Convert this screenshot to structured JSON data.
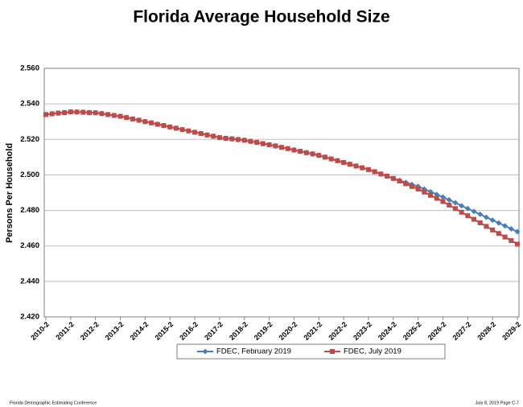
{
  "chart_data": {
    "type": "line",
    "title": "Florida Average Household Size",
    "y_label": "Persons Per Household",
    "footer_left": "Florida Demographic Estimating Conference",
    "footer_right": "July 8, 2019  Page C-7",
    "categories": [
      "2010-2",
      null,
      null,
      null,
      "2011-2",
      null,
      null,
      null,
      "2012-2",
      null,
      null,
      null,
      "2013-2",
      null,
      null,
      null,
      "2014-2",
      null,
      null,
      null,
      "2015-2",
      null,
      null,
      null,
      "2016-2",
      null,
      null,
      null,
      "2017-2",
      null,
      null,
      null,
      "2018-2",
      null,
      null,
      null,
      "2019-2",
      null,
      null,
      null,
      "2020-2",
      null,
      null,
      null,
      "2021-2",
      null,
      null,
      null,
      "2022-2",
      null,
      null,
      null,
      "2023-2",
      null,
      null,
      null,
      "2024-2",
      null,
      null,
      null,
      "2025-2",
      null,
      null,
      null,
      "2026-2",
      null,
      null,
      null,
      "2027-2",
      null,
      null,
      null,
      "2028-2",
      null,
      null,
      null,
      "2029-2"
    ],
    "ylim": [
      2.42,
      2.56
    ],
    "yticks": [
      {
        "value": 2.42,
        "label": "2.420"
      },
      {
        "value": 2.44,
        "label": "2.440"
      },
      {
        "value": 2.46,
        "label": "2.460"
      },
      {
        "value": 2.48,
        "label": "2.480"
      },
      {
        "value": 2.5,
        "label": "2.500"
      },
      {
        "value": 2.52,
        "label": "2.520"
      },
      {
        "value": 2.54,
        "label": "2.540"
      },
      {
        "value": 2.56,
        "label": "2.560"
      }
    ],
    "grid": true,
    "series": [
      {
        "name": "FDEC, February 2019",
        "color": "#4a7ebb",
        "marker": "diamond",
        "values": [
          2.534,
          2.5344,
          2.5348,
          2.5351,
          2.5355,
          2.5354,
          2.5353,
          2.5351,
          2.535,
          2.5345,
          2.534,
          2.5335,
          2.533,
          2.5323,
          2.5315,
          2.5308,
          2.53,
          2.5293,
          2.5285,
          2.5278,
          2.527,
          2.5263,
          2.5255,
          2.5248,
          2.524,
          2.5233,
          2.5225,
          2.5218,
          2.521,
          2.5206,
          2.5203,
          2.5199,
          2.5195,
          2.5189,
          2.5183,
          2.5176,
          2.517,
          2.5163,
          2.5155,
          2.5148,
          2.514,
          2.5133,
          2.5125,
          2.5118,
          2.511,
          2.51,
          2.509,
          2.508,
          2.507,
          2.506,
          2.505,
          2.504,
          2.503,
          2.5018,
          2.5005,
          2.4993,
          2.498,
          2.4969,
          2.4958,
          2.4946,
          2.4935,
          2.492,
          2.4905,
          2.489,
          2.4875,
          2.4859,
          2.4843,
          2.4826,
          2.481,
          2.4794,
          2.4778,
          2.4761,
          2.4745,
          2.4729,
          2.4713,
          2.4696,
          2.468
        ]
      },
      {
        "name": "FDEC, July 2019",
        "color": "#be4b48",
        "marker": "square",
        "values": [
          2.534,
          2.5344,
          2.5348,
          2.5351,
          2.5355,
          2.5354,
          2.5353,
          2.5351,
          2.535,
          2.5345,
          2.534,
          2.5335,
          2.533,
          2.5323,
          2.5315,
          2.5308,
          2.53,
          2.5293,
          2.5285,
          2.5278,
          2.527,
          2.5263,
          2.5255,
          2.5248,
          2.524,
          2.5233,
          2.5225,
          2.5218,
          2.521,
          2.5206,
          2.5203,
          2.5199,
          2.5195,
          2.5189,
          2.5183,
          2.5176,
          2.517,
          2.5163,
          2.5155,
          2.5148,
          2.514,
          2.5133,
          2.5125,
          2.5118,
          2.511,
          2.51,
          2.509,
          2.508,
          2.507,
          2.506,
          2.505,
          2.504,
          2.503,
          2.5018,
          2.5005,
          2.4993,
          2.498,
          2.4965,
          2.495,
          2.4935,
          2.492,
          2.4903,
          2.4885,
          2.4868,
          2.485,
          2.483,
          2.481,
          2.479,
          2.477,
          2.475,
          2.473,
          2.471,
          2.469,
          2.467,
          2.465,
          2.463,
          2.461
        ]
      }
    ]
  }
}
